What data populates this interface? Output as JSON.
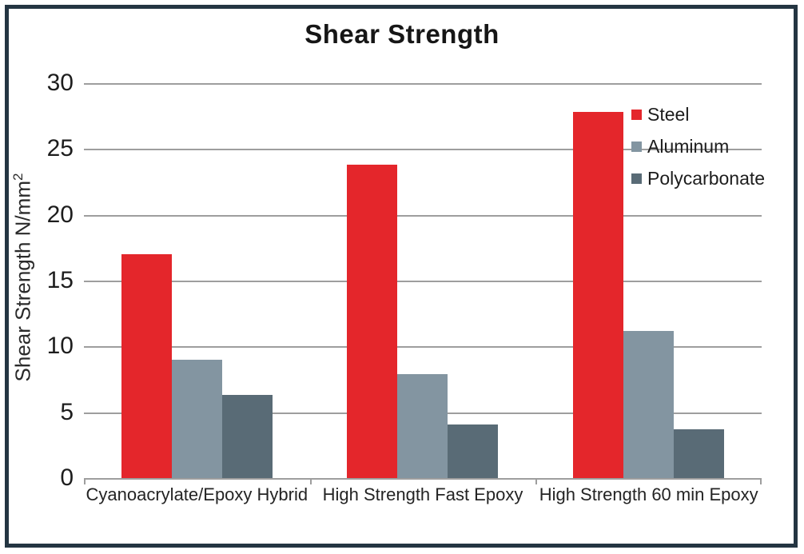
{
  "window": {
    "frame_color": "#243542",
    "background_color": "#ffffff"
  },
  "chart_data": {
    "type": "bar",
    "title": "Shear Strength",
    "ylabel": "Shear Strength N/mm",
    "ylabel_superscript": "2",
    "xlabel": "",
    "categories": [
      "Cyanoacrylate/Epoxy Hybrid",
      "High Strength Fast Epoxy",
      "High Strength 60 min Epoxy"
    ],
    "series": [
      {
        "name": "Steel",
        "color": "#e4262b",
        "values": [
          17.0,
          23.8,
          27.8
        ]
      },
      {
        "name": "Aluminum",
        "color": "#8395a1",
        "values": [
          9.0,
          7.9,
          11.2
        ]
      },
      {
        "name": "Polycarbonate",
        "color": "#596b76",
        "values": [
          6.3,
          4.1,
          3.7
        ]
      }
    ],
    "ylim": [
      0,
      30
    ],
    "yticks": [
      0,
      5,
      10,
      15,
      20,
      25,
      30
    ],
    "grid": true,
    "gridline_color": "#9e9e9e",
    "legend_position": "top-right"
  }
}
